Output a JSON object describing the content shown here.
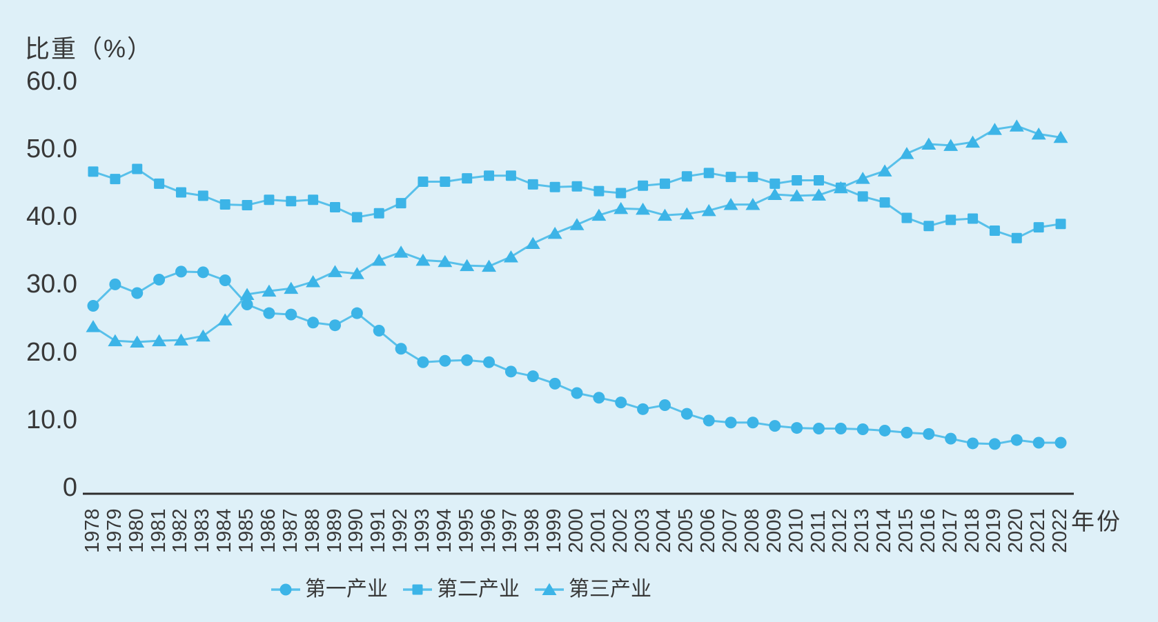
{
  "title": "比重（%）",
  "xaxis_title": "年份",
  "colors": {
    "background": "#def0f8",
    "marker": "#3cb4e7",
    "line": "#58c0ea",
    "axis": "#2d2d2d",
    "text": "#383838"
  },
  "legend": [
    {
      "label": "第一产业",
      "marker": "circle"
    },
    {
      "label": "第二产业",
      "marker": "square"
    },
    {
      "label": "第三产业",
      "marker": "triangle"
    }
  ],
  "chart_data": {
    "type": "line",
    "title": "比重（%）",
    "xlabel": "年份",
    "ylabel": "比重（%）",
    "ylim": [
      0,
      60
    ],
    "grid": false,
    "legend_position": "bottom",
    "yticks": [
      {
        "label": "60.0",
        "value": 60
      },
      {
        "label": "50.0",
        "value": 50
      },
      {
        "label": "40.0",
        "value": 40
      },
      {
        "label": "30.0",
        "value": 30
      },
      {
        "label": "20.0",
        "value": 20
      },
      {
        "label": "10.0",
        "value": 10
      },
      {
        "label": "0",
        "value": 0
      }
    ],
    "x": [
      1978,
      1979,
      1980,
      1981,
      1982,
      1983,
      1984,
      1985,
      1986,
      1987,
      1988,
      1989,
      1990,
      1991,
      1992,
      1993,
      1994,
      1995,
      1996,
      1997,
      1998,
      1999,
      2000,
      2001,
      2002,
      2003,
      2004,
      2005,
      2006,
      2007,
      2008,
      2009,
      2010,
      2011,
      2012,
      2013,
      2014,
      2015,
      2016,
      2017,
      2018,
      2019,
      2020,
      2021,
      2022
    ],
    "series": [
      {
        "name": "第一产业",
        "marker": "circle",
        "values": [
          27.7,
          30.9,
          29.6,
          31.6,
          32.8,
          32.7,
          31.5,
          27.9,
          26.6,
          26.4,
          25.2,
          24.8,
          26.6,
          24.0,
          21.3,
          19.3,
          19.5,
          19.6,
          19.3,
          17.9,
          17.2,
          16.1,
          14.7,
          14.0,
          13.3,
          12.3,
          12.9,
          11.6,
          10.6,
          10.3,
          10.3,
          9.8,
          9.5,
          9.4,
          9.4,
          9.3,
          9.1,
          8.8,
          8.6,
          7.9,
          7.2,
          7.1,
          7.7,
          7.3,
          7.3
        ]
      },
      {
        "name": "第二产业",
        "marker": "square",
        "values": [
          47.7,
          46.6,
          48.1,
          45.9,
          44.6,
          44.1,
          42.8,
          42.7,
          43.5,
          43.3,
          43.5,
          42.4,
          40.9,
          41.5,
          43.0,
          46.2,
          46.2,
          46.7,
          47.1,
          47.1,
          45.8,
          45.4,
          45.5,
          44.8,
          44.5,
          45.6,
          45.9,
          47.0,
          47.5,
          46.9,
          46.9,
          45.9,
          46.4,
          46.4,
          45.3,
          44.0,
          43.1,
          40.8,
          39.6,
          40.5,
          40.7,
          38.9,
          37.8,
          39.4,
          39.9
        ]
      },
      {
        "name": "第三产业",
        "marker": "triangle",
        "values": [
          24.6,
          22.5,
          22.3,
          22.5,
          22.6,
          23.2,
          25.6,
          29.4,
          29.9,
          30.3,
          31.3,
          32.8,
          32.5,
          34.5,
          35.7,
          34.5,
          34.3,
          33.7,
          33.6,
          35.0,
          37.0,
          38.5,
          39.8,
          41.2,
          42.2,
          42.1,
          41.2,
          41.4,
          41.9,
          42.8,
          42.8,
          44.3,
          44.1,
          44.2,
          45.3,
          46.7,
          47.8,
          50.4,
          51.8,
          51.6,
          52.1,
          54.0,
          54.5,
          53.3,
          52.8
        ]
      }
    ]
  }
}
